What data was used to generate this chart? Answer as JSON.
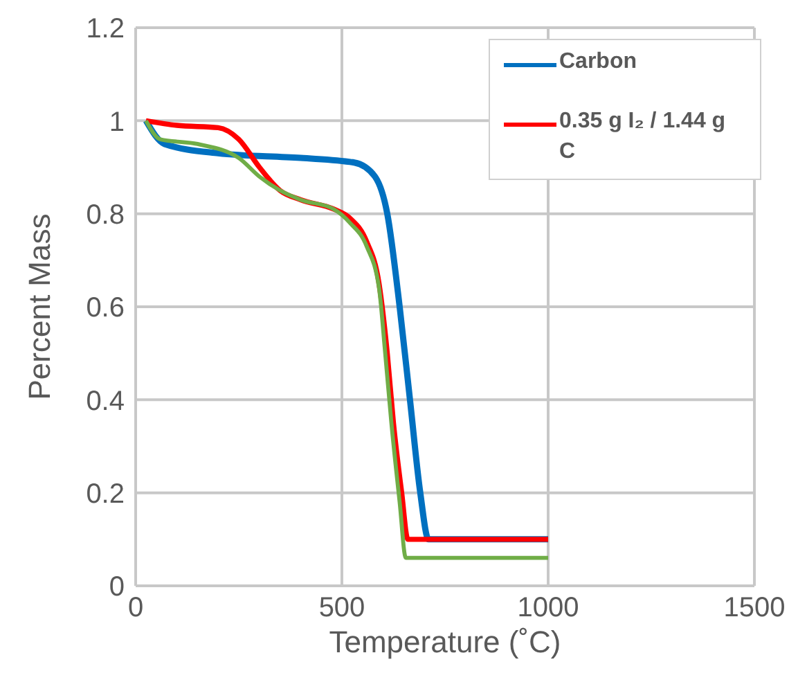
{
  "chart_data": {
    "type": "line",
    "xlabel": "Temperature (˚C)",
    "ylabel": "Percent Mass",
    "xlim": [
      0,
      1500
    ],
    "xticks": [
      0,
      500,
      1000,
      1500
    ],
    "ylim": [
      0,
      1.2
    ],
    "yticks": [
      0,
      0.2,
      0.4,
      0.6,
      0.8,
      1,
      1.2
    ],
    "grid": true,
    "legend": "top right",
    "marker": "none",
    "line_style": "solid",
    "series": [
      {
        "name": "Carbon",
        "color": "#0070c0",
        "x": [
          25,
          70,
          200,
          400,
          530,
          580,
          610,
          640,
          665,
          690,
          710,
          1000
        ],
        "values": [
          1.0,
          0.95,
          0.93,
          0.92,
          0.91,
          0.88,
          0.8,
          0.6,
          0.4,
          0.2,
          0.1,
          0.1
        ]
      },
      {
        "name": "0.35 g I₂ / 1.44 g C",
        "color": "#ff0000",
        "x": [
          25,
          100,
          200,
          250,
          300,
          350,
          400,
          480,
          520,
          560,
          590,
          610,
          625,
          645,
          660,
          1000
        ],
        "values": [
          1.0,
          0.99,
          0.985,
          0.96,
          0.9,
          0.85,
          0.83,
          0.81,
          0.79,
          0.74,
          0.65,
          0.5,
          0.35,
          0.2,
          0.1,
          0.1
        ]
      },
      {
        "color": "#70ad47",
        "x": [
          25,
          60,
          150,
          250,
          300,
          350,
          400,
          480,
          520,
          560,
          590,
          605,
          620,
          640,
          655,
          1000
        ],
        "values": [
          1.0,
          0.96,
          0.95,
          0.92,
          0.88,
          0.85,
          0.83,
          0.81,
          0.78,
          0.73,
          0.64,
          0.5,
          0.35,
          0.18,
          0.06,
          0.06
        ]
      }
    ]
  }
}
